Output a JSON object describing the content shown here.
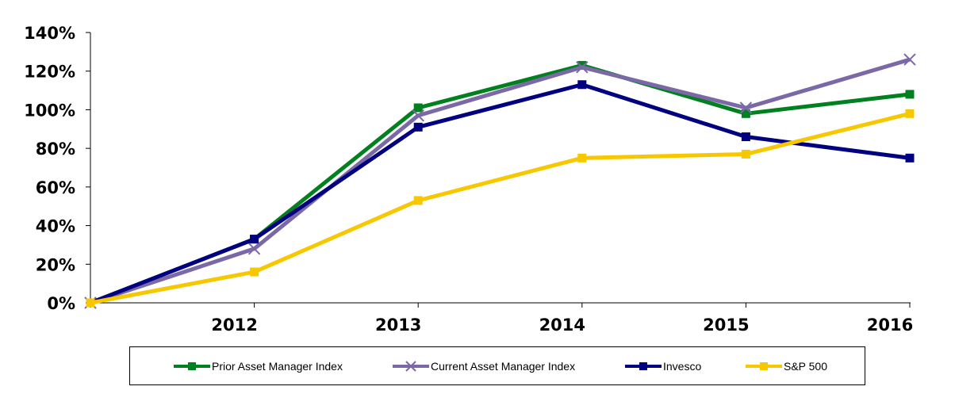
{
  "chart_data": {
    "type": "line",
    "title": "",
    "xlabel": "",
    "ylabel": "",
    "categories": [
      "",
      "2012",
      "2013",
      "2014",
      "2015",
      "2016"
    ],
    "ylim": [
      0,
      140
    ],
    "yticks": [
      "0%",
      "20%",
      "40%",
      "60%",
      "80%",
      "100%",
      "120%",
      "140%"
    ],
    "ytick_values": [
      0,
      20,
      40,
      60,
      80,
      100,
      120,
      140
    ],
    "grid": false,
    "legend_position": "bottom",
    "series": [
      {
        "name": "Prior Asset Manager Index",
        "color": "#00801e",
        "marker": "square",
        "values": [
          0,
          33,
          101,
          123,
          98,
          108
        ]
      },
      {
        "name": "Current Asset Manager Index",
        "color": "#7b68a6",
        "marker": "x",
        "values": [
          0,
          28,
          97,
          122,
          101,
          126
        ]
      },
      {
        "name": "Invesco",
        "color": "#000080",
        "marker": "square",
        "values": [
          0,
          33,
          91,
          113,
          86,
          75
        ]
      },
      {
        "name": "S&P 500",
        "color": "#f7c800",
        "marker": "square",
        "values": [
          0,
          16,
          53,
          75,
          77,
          98
        ]
      }
    ]
  }
}
